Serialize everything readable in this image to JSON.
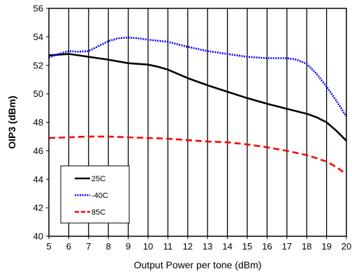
{
  "chart_data": {
    "type": "line",
    "xlabel": "Output Power per tone (dBm)",
    "ylabel": "OIP3 (dBm)",
    "xlim": [
      5,
      20
    ],
    "ylim": [
      40,
      56
    ],
    "x_ticks": [
      "5",
      "6",
      "7",
      "8",
      "9",
      "10",
      "11",
      "12",
      "13",
      "14",
      "15",
      "16",
      "17",
      "18",
      "19",
      "20"
    ],
    "y_ticks": [
      "40",
      "42",
      "44",
      "46",
      "48",
      "50",
      "52",
      "54",
      "56"
    ],
    "grid": "vertical",
    "legend_position": "bottom-left",
    "series": [
      {
        "name": "25C",
        "color": "#000000",
        "style": "solid",
        "x": [
          5,
          5.5,
          6,
          6.5,
          7,
          8,
          9,
          10,
          10.5,
          11,
          12,
          13,
          14,
          15,
          16,
          17,
          18,
          18.5,
          19,
          19.5,
          20
        ],
        "y": [
          52.7,
          52.75,
          52.8,
          52.7,
          52.6,
          52.4,
          52.15,
          52.05,
          51.9,
          51.7,
          51.1,
          50.6,
          50.15,
          49.7,
          49.3,
          48.95,
          48.6,
          48.35,
          48.0,
          47.4,
          46.7
        ]
      },
      {
        "name": "-40C",
        "color": "#0000ff",
        "style": "dotted",
        "x": [
          5,
          5.5,
          6,
          6.5,
          7,
          7.5,
          8,
          8.5,
          9,
          9.5,
          10,
          11,
          12,
          13,
          14,
          15,
          16,
          17,
          17.5,
          18,
          18.5,
          19,
          19.5,
          20
        ],
        "y": [
          52.55,
          52.8,
          53.0,
          52.95,
          53.0,
          53.35,
          53.7,
          53.9,
          53.95,
          53.9,
          53.8,
          53.65,
          53.3,
          53.0,
          52.8,
          52.6,
          52.5,
          52.5,
          52.4,
          52.1,
          51.4,
          50.5,
          49.5,
          48.4
        ]
      },
      {
        "name": "85C",
        "color": "#ff0000",
        "style": "dashed",
        "x": [
          5,
          6,
          7,
          8,
          9,
          10,
          11,
          12,
          13,
          14,
          15,
          16,
          17,
          18,
          19,
          19.5,
          20
        ],
        "y": [
          46.9,
          46.95,
          47.0,
          47.0,
          46.95,
          46.9,
          46.85,
          46.75,
          46.65,
          46.6,
          46.45,
          46.25,
          46.0,
          45.7,
          45.25,
          44.85,
          44.35
        ]
      }
    ]
  }
}
